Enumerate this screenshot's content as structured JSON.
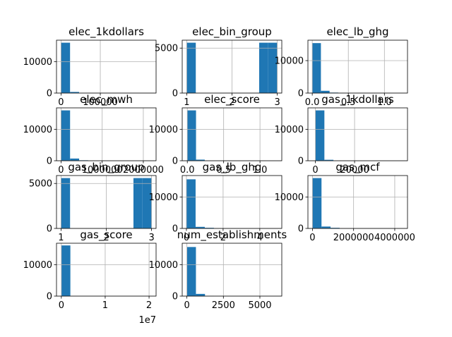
{
  "figure": {
    "background": "#ffffff",
    "bar_color": "#1f77b4",
    "grid_color": "#b0b0b0"
  },
  "chart_data": [
    {
      "type": "bar",
      "title": "elec_1kdollars",
      "grid": true,
      "xlim": [
        -11500,
        242000
      ],
      "ylim": [
        0,
        16800
      ],
      "x_ticks": [
        {
          "v": 0,
          "label": "0"
        },
        {
          "v": 100000,
          "label": "100000"
        }
      ],
      "y_ticks": [
        {
          "v": 0,
          "label": "0"
        },
        {
          "v": 10000,
          "label": "10000"
        }
      ],
      "bins": [
        [
          0,
          23000,
          16000
        ],
        [
          23000,
          46000,
          350
        ]
      ]
    },
    {
      "type": "bar",
      "title": "elec_bin_group",
      "grid": true,
      "xlim": [
        0.9,
        3.1
      ],
      "ylim": [
        0,
        5880
      ],
      "x_ticks": [
        {
          "v": 1,
          "label": "1"
        },
        {
          "v": 2,
          "label": "2"
        },
        {
          "v": 3,
          "label": "3"
        }
      ],
      "y_ticks": [
        {
          "v": 0,
          "label": "0"
        },
        {
          "v": 5000,
          "label": "5000"
        }
      ],
      "bins": [
        [
          1.0,
          1.2,
          5600
        ],
        [
          2.6,
          2.8,
          5600
        ],
        [
          2.8,
          3.0,
          5600
        ]
      ]
    },
    {
      "type": "bar",
      "title": "elec_lb_ghg",
      "grid": true,
      "xlim": [
        -0.06,
        1.32
      ],
      "ylim": [
        0,
        16300
      ],
      "x_ticks": [
        {
          "v": 0,
          "label": "0.0"
        },
        {
          "v": 0.5,
          "label": "0.5"
        },
        {
          "v": 1.0,
          "label": "1.0"
        }
      ],
      "y_ticks": [
        {
          "v": 0,
          "label": "0"
        },
        {
          "v": 10000,
          "label": "10000"
        }
      ],
      "bins": [
        [
          0,
          0.12,
          15400
        ],
        [
          0.12,
          0.24,
          700
        ],
        [
          0.24,
          0.36,
          150
        ],
        [
          0.36,
          0.48,
          40
        ]
      ]
    },
    {
      "type": "bar",
      "title": "elec_mwh",
      "grid": true,
      "xlim": [
        -110000,
        2310000
      ],
      "ylim": [
        0,
        16800
      ],
      "x_ticks": [
        {
          "v": 0,
          "label": "0"
        },
        {
          "v": 1000000,
          "label": "1000000"
        },
        {
          "v": 2000000,
          "label": "2000000"
        }
      ],
      "y_ticks": [
        {
          "v": 0,
          "label": "0"
        },
        {
          "v": 10000,
          "label": "10000"
        }
      ],
      "bins": [
        [
          0,
          220000,
          16000
        ],
        [
          220000,
          440000,
          700
        ],
        [
          440000,
          660000,
          150
        ]
      ]
    },
    {
      "type": "bar",
      "title": "elec_score",
      "grid": true,
      "xlim": [
        -0.07,
        1.3
      ],
      "ylim": [
        0,
        16800
      ],
      "x_ticks": [
        {
          "v": 0,
          "label": "0.0"
        },
        {
          "v": 0.5,
          "label": "0.5"
        },
        {
          "v": 1.0,
          "label": "1.0"
        }
      ],
      "y_ticks": [
        {
          "v": 0,
          "label": "0"
        },
        {
          "v": 10000,
          "label": "10000"
        }
      ],
      "bins": [
        [
          0,
          0.12,
          16000
        ],
        [
          0.12,
          0.24,
          350
        ]
      ]
    },
    {
      "type": "bar",
      "title": "gas_1kdollars",
      "grid": true,
      "xlim": [
        -3800,
        47000
      ],
      "ylim": [
        0,
        16800
      ],
      "x_ticks": [
        {
          "v": 0,
          "label": "0"
        },
        {
          "v": 20000,
          "label": "20000"
        }
      ],
      "y_ticks": [
        {
          "v": 0,
          "label": "0"
        },
        {
          "v": 10000,
          "label": "10000"
        }
      ],
      "bins": [
        [
          0,
          4600,
          16000
        ],
        [
          4600,
          9200,
          300
        ]
      ]
    },
    {
      "type": "bar",
      "title": "gas_bin_group",
      "grid": true,
      "xlim": [
        0.9,
        3.1
      ],
      "ylim": [
        0,
        5880
      ],
      "x_ticks": [
        {
          "v": 1,
          "label": "1"
        },
        {
          "v": 2,
          "label": "2"
        },
        {
          "v": 3,
          "label": "3"
        }
      ],
      "y_ticks": [
        {
          "v": 0,
          "label": "0"
        },
        {
          "v": 5000,
          "label": "5000"
        }
      ],
      "bins": [
        [
          1.0,
          1.2,
          5600
        ],
        [
          2.6,
          2.8,
          5600
        ],
        [
          2.8,
          3.0,
          5600
        ]
      ]
    },
    {
      "type": "bar",
      "title": "gas_lb_ghg",
      "grid": true,
      "xlim": [
        -0.23,
        5.2
      ],
      "ylim": [
        0,
        16800
      ],
      "x_ticks": [
        {
          "v": 0,
          "label": "0"
        },
        {
          "v": 2,
          "label": "2"
        },
        {
          "v": 4,
          "label": "4"
        }
      ],
      "y_ticks": [
        {
          "v": 0,
          "label": "0"
        },
        {
          "v": 10000,
          "label": "10000"
        }
      ],
      "bins": [
        [
          0,
          0.5,
          15600
        ],
        [
          0.5,
          1.0,
          500
        ],
        [
          1.0,
          1.5,
          200
        ],
        [
          1.5,
          2.0,
          60
        ]
      ]
    },
    {
      "type": "bar",
      "title": "gas_mcf",
      "grid": true,
      "xlim": [
        -220000,
        4620000
      ],
      "ylim": [
        0,
        16800
      ],
      "x_ticks": [
        {
          "v": 0,
          "label": "0"
        },
        {
          "v": 2000000,
          "label": "2000000"
        },
        {
          "v": 4000000,
          "label": "4000000"
        }
      ],
      "y_ticks": [
        {
          "v": 0,
          "label": "0"
        },
        {
          "v": 10000,
          "label": "10000"
        }
      ],
      "bins": [
        [
          0,
          440000,
          16000
        ],
        [
          440000,
          880000,
          600
        ],
        [
          880000,
          1320000,
          200
        ]
      ]
    },
    {
      "type": "bar",
      "title": "gas_score",
      "grid": true,
      "xlim": [
        -1100000,
        21600000
      ],
      "ylim": [
        0,
        16800
      ],
      "x_ticks": [
        {
          "v": 0,
          "label": "0"
        },
        {
          "v": 10000000,
          "label": "1"
        },
        {
          "v": 20000000,
          "label": "2"
        }
      ],
      "x_offset_text": "1e7",
      "y_ticks": [
        {
          "v": 0,
          "label": "0"
        },
        {
          "v": 10000,
          "label": "10000"
        }
      ],
      "bins": [
        [
          0,
          2060000,
          16100
        ]
      ]
    },
    {
      "type": "bar",
      "title": "num_establishments",
      "grid": true,
      "xlim": [
        -320,
        6500
      ],
      "ylim": [
        0,
        16800
      ],
      "x_ticks": [
        {
          "v": 0,
          "label": "0"
        },
        {
          "v": 2500,
          "label": "2500"
        },
        {
          "v": 5000,
          "label": "5000"
        }
      ],
      "y_ticks": [
        {
          "v": 0,
          "label": "0"
        },
        {
          "v": 10000,
          "label": "10000"
        }
      ],
      "bins": [
        [
          0,
          620,
          15600
        ],
        [
          620,
          1240,
          700
        ],
        [
          1240,
          1860,
          50
        ]
      ]
    }
  ]
}
